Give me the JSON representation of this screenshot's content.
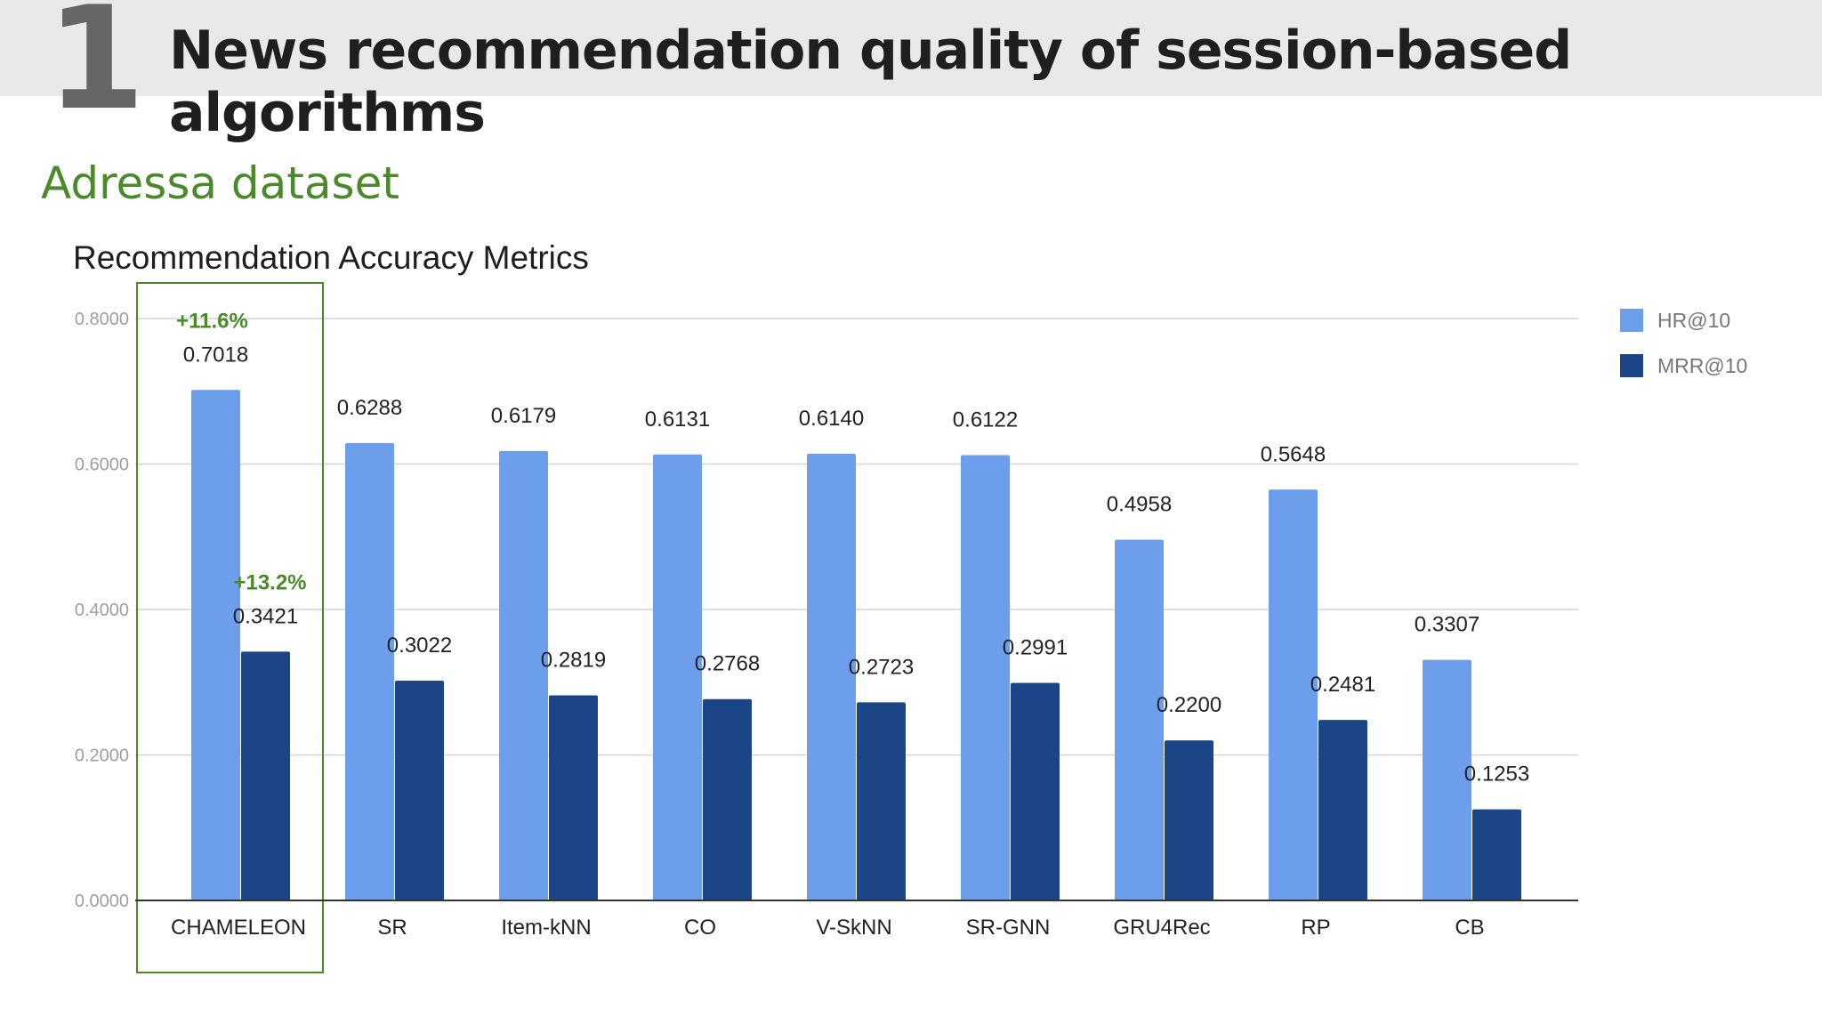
{
  "slide": {
    "number": "1",
    "title": "News recommendation quality of session-based algorithms",
    "dataset": "Adressa dataset"
  },
  "colors": {
    "header_band": "#e8eaea",
    "hr": "#6d9eeb",
    "mrr": "#1c4587",
    "highlight": "#4a8a2a"
  },
  "chart_data": {
    "type": "bar",
    "title": "Recommendation Accuracy Metrics",
    "xlabel": "",
    "ylabel": "",
    "categories": [
      "CHAMELEON",
      "SR",
      "Item-kNN",
      "CO",
      "V-SkNN",
      "SR-GNN",
      "GRU4Rec",
      "RP",
      "CB"
    ],
    "series": [
      {
        "name": "HR@10",
        "values": [
          0.7018,
          0.6288,
          0.6179,
          0.6131,
          0.614,
          0.6122,
          0.4958,
          0.5648,
          0.3307
        ],
        "labels": [
          "0.7018",
          "0.6288",
          "0.6179",
          "0.6131",
          "0.6140",
          "0.6122",
          "0.4958",
          "0.5648",
          "0.3307"
        ]
      },
      {
        "name": "MRR@10",
        "values": [
          0.3421,
          0.3022,
          0.2819,
          0.2768,
          0.2723,
          0.2991,
          0.22,
          0.2481,
          0.1253
        ],
        "labels": [
          "0.3421",
          "0.3022",
          "0.2819",
          "0.2768",
          "0.2723",
          "0.2991",
          "0.2200",
          "0.2481",
          "0.1253"
        ]
      }
    ],
    "ylim": [
      0,
      0.8
    ],
    "yticks": [
      "0.0000",
      "0.2000",
      "0.4000",
      "0.6000",
      "0.8000"
    ],
    "ytick_values": [
      0,
      0.2,
      0.4,
      0.6,
      0.8
    ],
    "grid": true,
    "legend_position": "top-right",
    "highlight": {
      "category": "CHAMELEON",
      "hr_improvement": "+11.6%",
      "mrr_improvement": "+13.2%"
    }
  }
}
